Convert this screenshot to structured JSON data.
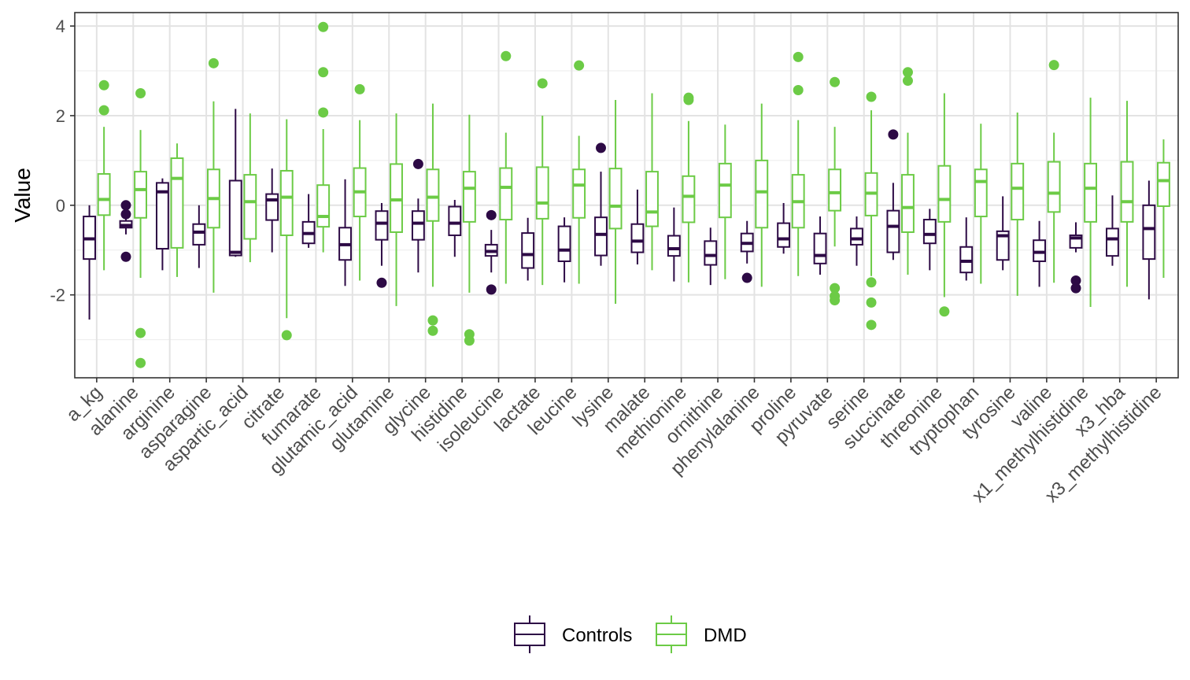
{
  "chart_data": {
    "type": "boxplot",
    "xlabel": "",
    "ylabel": "Value",
    "ylim": [
      -3.85,
      4.3
    ],
    "yticks": [
      -2,
      0,
      2,
      4
    ],
    "grid": true,
    "legend_position": "bottom",
    "categories": [
      "a_kg",
      "alanine",
      "arginine",
      "asparagine",
      "aspartic_acid",
      "citrate",
      "fumarate",
      "glutamic_acid",
      "glutamine",
      "glycine",
      "histidine",
      "isoleucine",
      "lactate",
      "leucine",
      "lysine",
      "malate",
      "methionine",
      "ornithine",
      "phenylalanine",
      "proline",
      "pyruvate",
      "serine",
      "succinate",
      "threonine",
      "tryptophan",
      "tyrosine",
      "valine",
      "x1_methylhistidine",
      "x3_hba",
      "x3_methylhistidine"
    ],
    "series": [
      {
        "name": "Controls",
        "color": "#2D0A45",
        "boxes": [
          {
            "min": -2.55,
            "q1": -1.2,
            "median": -0.75,
            "q3": -0.25,
            "max": 0.0,
            "outliers": []
          },
          {
            "min": -0.65,
            "q1": -0.5,
            "median": -0.45,
            "q3": -0.35,
            "max": -0.3,
            "outliers": [
              0.0,
              -0.2,
              -1.15
            ]
          },
          {
            "min": -1.45,
            "q1": -0.97,
            "median": 0.3,
            "q3": 0.5,
            "max": 0.6,
            "outliers": []
          },
          {
            "min": -1.4,
            "q1": -0.88,
            "median": -0.6,
            "q3": -0.42,
            "max": 0.0,
            "outliers": []
          },
          {
            "min": -1.15,
            "q1": -1.12,
            "median": -1.05,
            "q3": 0.55,
            "max": 2.15,
            "outliers": []
          },
          {
            "min": -1.05,
            "q1": -0.33,
            "median": 0.12,
            "q3": 0.25,
            "max": 0.82,
            "outliers": []
          },
          {
            "min": -0.95,
            "q1": -0.85,
            "median": -0.63,
            "q3": -0.37,
            "max": 0.25,
            "outliers": []
          },
          {
            "min": -1.8,
            "q1": -1.22,
            "median": -0.88,
            "q3": -0.5,
            "max": 0.58,
            "outliers": []
          },
          {
            "min": -1.35,
            "q1": -0.77,
            "median": -0.4,
            "q3": -0.13,
            "max": 0.05,
            "outliers": [
              -1.73
            ]
          },
          {
            "min": -1.5,
            "q1": -0.77,
            "median": -0.4,
            "q3": -0.13,
            "max": 0.15,
            "outliers": [
              0.92
            ]
          },
          {
            "min": -1.15,
            "q1": -0.67,
            "median": -0.4,
            "q3": -0.03,
            "max": 0.12,
            "outliers": []
          },
          {
            "min": -1.5,
            "q1": -1.13,
            "median": -1.03,
            "q3": -0.88,
            "max": -0.55,
            "outliers": [
              -0.22,
              -1.88
            ]
          },
          {
            "min": -1.68,
            "q1": -1.4,
            "median": -1.1,
            "q3": -0.62,
            "max": -0.28,
            "outliers": []
          },
          {
            "min": -1.72,
            "q1": -1.25,
            "median": -1.0,
            "q3": -0.47,
            "max": -0.27,
            "outliers": []
          },
          {
            "min": -1.35,
            "q1": -1.12,
            "median": -0.65,
            "q3": -0.27,
            "max": 0.75,
            "outliers": [
              1.28
            ]
          },
          {
            "min": -1.32,
            "q1": -1.05,
            "median": -0.8,
            "q3": -0.42,
            "max": 0.35,
            "outliers": []
          },
          {
            "min": -1.7,
            "q1": -1.13,
            "median": -0.97,
            "q3": -0.68,
            "max": -0.05,
            "outliers": []
          },
          {
            "min": -1.78,
            "q1": -1.33,
            "median": -1.12,
            "q3": -0.8,
            "max": -0.5,
            "outliers": []
          },
          {
            "min": -1.3,
            "q1": -1.03,
            "median": -0.85,
            "q3": -0.63,
            "max": -0.35,
            "outliers": [
              -1.62
            ]
          },
          {
            "min": -1.08,
            "q1": -0.93,
            "median": -0.75,
            "q3": -0.4,
            "max": 0.05,
            "outliers": []
          },
          {
            "min": -1.55,
            "q1": -1.3,
            "median": -1.12,
            "q3": -0.63,
            "max": -0.25,
            "outliers": []
          },
          {
            "min": -1.35,
            "q1": -0.88,
            "median": -0.75,
            "q3": -0.52,
            "max": -0.25,
            "outliers": []
          },
          {
            "min": -1.22,
            "q1": -1.05,
            "median": -0.47,
            "q3": -0.12,
            "max": 0.5,
            "outliers": [
              1.58
            ]
          },
          {
            "min": -1.45,
            "q1": -0.85,
            "median": -0.65,
            "q3": -0.32,
            "max": -0.08,
            "outliers": []
          },
          {
            "min": -1.68,
            "q1": -1.5,
            "median": -1.25,
            "q3": -0.93,
            "max": -0.27,
            "outliers": []
          },
          {
            "min": -1.45,
            "q1": -1.22,
            "median": -0.68,
            "q3": -0.58,
            "max": 0.2,
            "outliers": []
          },
          {
            "min": -1.82,
            "q1": -1.25,
            "median": -1.05,
            "q3": -0.78,
            "max": -0.35,
            "outliers": []
          },
          {
            "min": -1.05,
            "q1": -0.95,
            "median": -0.73,
            "q3": -0.67,
            "max": -0.38,
            "outliers": [
              -1.68,
              -1.85
            ]
          },
          {
            "min": -1.35,
            "q1": -1.13,
            "median": -0.75,
            "q3": -0.52,
            "max": 0.22,
            "outliers": []
          },
          {
            "min": -2.1,
            "q1": -1.2,
            "median": -0.52,
            "q3": 0.0,
            "max": 0.55,
            "outliers": []
          }
        ]
      },
      {
        "name": "DMD",
        "color": "#6CCB46",
        "boxes": [
          {
            "min": -1.45,
            "q1": -0.22,
            "median": 0.13,
            "q3": 0.7,
            "max": 1.75,
            "outliers": [
              2.68,
              2.12
            ]
          },
          {
            "min": -1.62,
            "q1": -0.28,
            "median": 0.35,
            "q3": 0.75,
            "max": 1.68,
            "outliers": [
              2.5,
              -2.85,
              -3.52
            ]
          },
          {
            "min": -1.6,
            "q1": -0.95,
            "median": 0.6,
            "q3": 1.05,
            "max": 1.38,
            "outliers": []
          },
          {
            "min": -1.95,
            "q1": -0.5,
            "median": 0.15,
            "q3": 0.8,
            "max": 2.32,
            "outliers": [
              3.17
            ]
          },
          {
            "min": -1.27,
            "q1": -0.75,
            "median": 0.08,
            "q3": 0.68,
            "max": 2.05,
            "outliers": []
          },
          {
            "min": -2.52,
            "q1": -0.67,
            "median": 0.18,
            "q3": 0.77,
            "max": 1.92,
            "outliers": [
              -2.9
            ]
          },
          {
            "min": -1.05,
            "q1": -0.48,
            "median": -0.25,
            "q3": 0.45,
            "max": 1.7,
            "outliers": [
              3.98,
              2.97,
              2.07
            ]
          },
          {
            "min": -1.68,
            "q1": -0.25,
            "median": 0.3,
            "q3": 0.83,
            "max": 1.9,
            "outliers": [
              2.59
            ]
          },
          {
            "min": -2.25,
            "q1": -0.6,
            "median": 0.12,
            "q3": 0.92,
            "max": 2.05,
            "outliers": []
          },
          {
            "min": -1.82,
            "q1": -0.35,
            "median": 0.18,
            "q3": 0.8,
            "max": 2.27,
            "outliers": [
              -2.57,
              -2.8
            ]
          },
          {
            "min": -1.95,
            "q1": -0.37,
            "median": 0.38,
            "q3": 0.75,
            "max": 2.02,
            "outliers": [
              -2.88,
              -3.02
            ]
          },
          {
            "min": -1.75,
            "q1": -0.32,
            "median": 0.4,
            "q3": 0.83,
            "max": 1.62,
            "outliers": [
              3.33
            ]
          },
          {
            "min": -1.78,
            "q1": -0.3,
            "median": 0.05,
            "q3": 0.85,
            "max": 2.0,
            "outliers": [
              2.72
            ]
          },
          {
            "min": -1.75,
            "q1": -0.28,
            "median": 0.45,
            "q3": 0.8,
            "max": 1.55,
            "outliers": [
              3.12
            ]
          },
          {
            "min": -2.2,
            "q1": -0.52,
            "median": -0.02,
            "q3": 0.82,
            "max": 2.35,
            "outliers": []
          },
          {
            "min": -1.45,
            "q1": -0.47,
            "median": -0.15,
            "q3": 0.75,
            "max": 2.5,
            "outliers": []
          },
          {
            "min": -1.72,
            "q1": -0.38,
            "median": 0.2,
            "q3": 0.65,
            "max": 1.88,
            "outliers": [
              2.4,
              2.35
            ]
          },
          {
            "min": -1.65,
            "q1": -0.27,
            "median": 0.45,
            "q3": 0.93,
            "max": 1.8,
            "outliers": []
          },
          {
            "min": -1.82,
            "q1": -0.5,
            "median": 0.3,
            "q3": 1.0,
            "max": 2.27,
            "outliers": []
          },
          {
            "min": -1.58,
            "q1": -0.5,
            "median": 0.08,
            "q3": 0.68,
            "max": 1.9,
            "outliers": [
              3.31,
              2.57
            ]
          },
          {
            "min": -0.92,
            "q1": -0.12,
            "median": 0.28,
            "q3": 0.8,
            "max": 1.75,
            "outliers": [
              2.75,
              -1.85,
              -2.03,
              -2.12
            ]
          },
          {
            "min": -1.58,
            "q1": -0.23,
            "median": 0.27,
            "q3": 0.72,
            "max": 2.12,
            "outliers": [
              2.42,
              -1.72,
              -2.17,
              -2.67
            ]
          },
          {
            "min": -1.55,
            "q1": -0.6,
            "median": -0.05,
            "q3": 0.68,
            "max": 1.62,
            "outliers": [
              2.97,
              2.78
            ]
          },
          {
            "min": -2.05,
            "q1": -0.37,
            "median": 0.13,
            "q3": 0.88,
            "max": 2.5,
            "outliers": [
              -2.37
            ]
          },
          {
            "min": -1.75,
            "q1": -0.25,
            "median": 0.53,
            "q3": 0.8,
            "max": 1.82,
            "outliers": []
          },
          {
            "min": -2.02,
            "q1": -0.32,
            "median": 0.38,
            "q3": 0.93,
            "max": 2.07,
            "outliers": []
          },
          {
            "min": -1.73,
            "q1": -0.15,
            "median": 0.27,
            "q3": 0.97,
            "max": 1.62,
            "outliers": [
              3.13
            ]
          },
          {
            "min": -2.27,
            "q1": -0.37,
            "median": 0.38,
            "q3": 0.93,
            "max": 2.4,
            "outliers": []
          },
          {
            "min": -1.82,
            "q1": -0.37,
            "median": 0.08,
            "q3": 0.97,
            "max": 2.33,
            "outliers": []
          },
          {
            "min": -1.62,
            "q1": -0.02,
            "median": 0.55,
            "q3": 0.95,
            "max": 1.47,
            "outliers": []
          }
        ]
      }
    ]
  }
}
